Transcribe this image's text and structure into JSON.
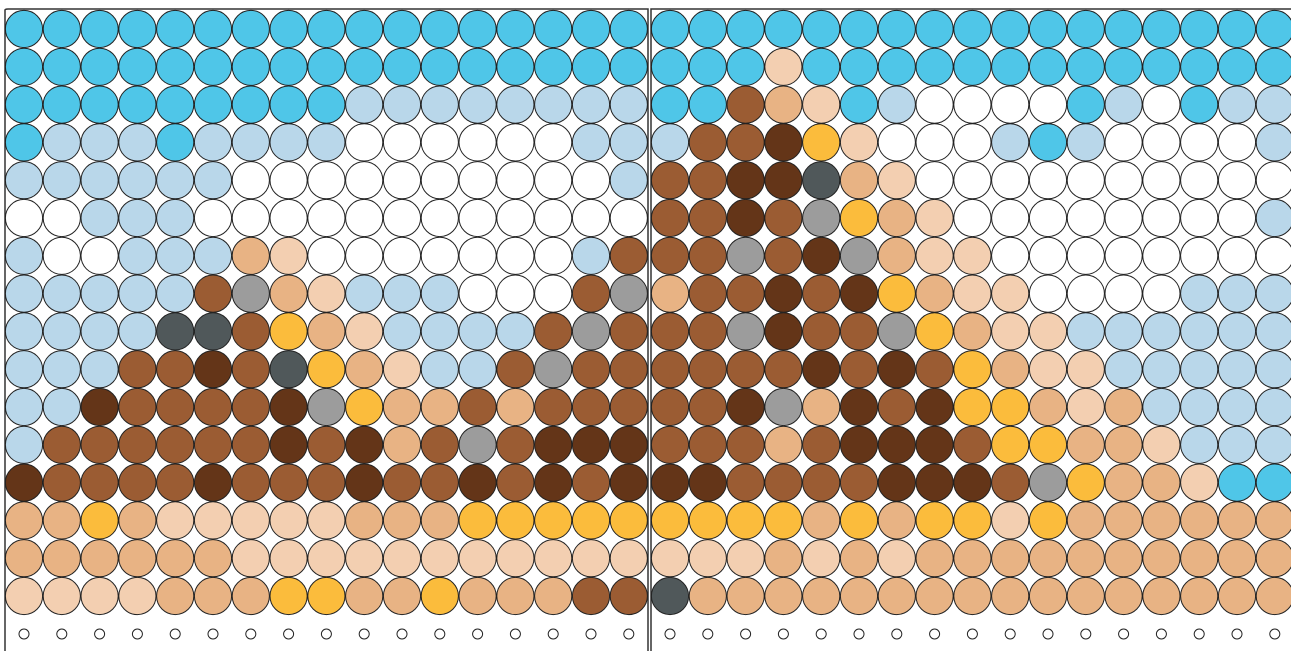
{
  "boards": [
    {
      "rows": [
        [
          "#4fc6e8",
          "#4fc6e8",
          "#4fc6e8",
          "#4fc6e8",
          "#4fc6e8",
          "#4fc6e8",
          "#4fc6e8",
          "#4fc6e8",
          "#4fc6e8",
          "#4fc6e8",
          "#4fc6e8",
          "#4fc6e8",
          "#4fc6e8",
          "#4fc6e8",
          "#4fc6e8",
          "#4fc6e8",
          "#4fc6e8"
        ],
        [
          "#4fc6e8",
          "#4fc6e8",
          "#4fc6e8",
          "#4fc6e8",
          "#4fc6e8",
          "#4fc6e8",
          "#4fc6e8",
          "#4fc6e8",
          "#4fc6e8",
          "#4fc6e8",
          "#4fc6e8",
          "#4fc6e8",
          "#4fc6e8",
          "#4fc6e8",
          "#4fc6e8",
          "#4fc6e8",
          "#4fc6e8"
        ],
        [
          "#4fc6e8",
          "#4fc6e8",
          "#4fc6e8",
          "#4fc6e8",
          "#4fc6e8",
          "#4fc6e8",
          "#4fc6e8",
          "#4fc6e8",
          "#4fc6e8",
          "#b9d7ea",
          "#b9d7ea",
          "#b9d7ea",
          "#b9d7ea",
          "#b9d7ea",
          "#b9d7ea",
          "#b9d7ea",
          "#b9d7ea"
        ],
        [
          "#4fc6e8",
          "#b9d7ea",
          "#b9d7ea",
          "#b9d7ea",
          "#4fc6e8",
          "#b9d7ea",
          "#b9d7ea",
          "#b9d7ea",
          "#b9d7ea",
          "#ffffff",
          "#ffffff",
          "#ffffff",
          "#ffffff",
          "#ffffff",
          "#ffffff",
          "#b9d7ea",
          "#b9d7ea"
        ],
        [
          "#b9d7ea",
          "#b9d7ea",
          "#b9d7ea",
          "#b9d7ea",
          "#b9d7ea",
          "#b9d7ea",
          "#ffffff",
          "#ffffff",
          "#ffffff",
          "#ffffff",
          "#ffffff",
          "#ffffff",
          "#ffffff",
          "#ffffff",
          "#ffffff",
          "#ffffff",
          "#b9d7ea"
        ],
        [
          "#ffffff",
          "#ffffff",
          "#b9d7ea",
          "#b9d7ea",
          "#b9d7ea",
          "#ffffff",
          "#ffffff",
          "#ffffff",
          "#ffffff",
          "#ffffff",
          "#ffffff",
          "#ffffff",
          "#ffffff",
          "#ffffff",
          "#ffffff",
          "#ffffff",
          "#ffffff"
        ],
        [
          "#b9d7ea",
          "#ffffff",
          "#ffffff",
          "#b9d7ea",
          "#b9d7ea",
          "#b9d7ea",
          "#e8b384",
          "#f3cfb1",
          "#ffffff",
          "#ffffff",
          "#ffffff",
          "#ffffff",
          "#ffffff",
          "#ffffff",
          "#ffffff",
          "#b9d7ea",
          "#9b5c33"
        ],
        [
          "#b9d7ea",
          "#b9d7ea",
          "#b9d7ea",
          "#b9d7ea",
          "#b9d7ea",
          "#9b5c33",
          "#9c9c9c",
          "#e8b384",
          "#f3cfb1",
          "#b9d7ea",
          "#b9d7ea",
          "#b9d7ea",
          "#ffffff",
          "#ffffff",
          "#ffffff",
          "#9b5c33",
          "#9c9c9c"
        ],
        [
          "#b9d7ea",
          "#b9d7ea",
          "#b9d7ea",
          "#b9d7ea",
          "#50585a",
          "#50585a",
          "#9b5c33",
          "#fbbc3c",
          "#e8b384",
          "#f3cfb1",
          "#b9d7ea",
          "#b9d7ea",
          "#b9d7ea",
          "#b9d7ea",
          "#9b5c33",
          "#9c9c9c",
          "#9b5c33"
        ],
        [
          "#b9d7ea",
          "#b9d7ea",
          "#b9d7ea",
          "#9b5c33",
          "#9b5c33",
          "#643518",
          "#9b5c33",
          "#50585a",
          "#fbbc3c",
          "#e8b384",
          "#f3cfb1",
          "#b9d7ea",
          "#b9d7ea",
          "#9b5c33",
          "#9c9c9c",
          "#9b5c33",
          "#9b5c33"
        ],
        [
          "#b9d7ea",
          "#b9d7ea",
          "#643518",
          "#9b5c33",
          "#9b5c33",
          "#9b5c33",
          "#9b5c33",
          "#643518",
          "#9c9c9c",
          "#fbbc3c",
          "#e8b384",
          "#e8b384",
          "#9b5c33",
          "#e8b384",
          "#9b5c33",
          "#9b5c33",
          "#9b5c33"
        ],
        [
          "#b9d7ea",
          "#9b5c33",
          "#9b5c33",
          "#9b5c33",
          "#9b5c33",
          "#9b5c33",
          "#9b5c33",
          "#643518",
          "#9b5c33",
          "#643518",
          "#e8b384",
          "#9b5c33",
          "#9c9c9c",
          "#9b5c33",
          "#643518",
          "#643518",
          "#643518"
        ],
        [
          "#643518",
          "#9b5c33",
          "#9b5c33",
          "#9b5c33",
          "#9b5c33",
          "#643518",
          "#9b5c33",
          "#9b5c33",
          "#9b5c33",
          "#643518",
          "#9b5c33",
          "#9b5c33",
          "#643518",
          "#9b5c33",
          "#643518",
          "#9b5c33",
          "#643518"
        ],
        [
          "#e8b384",
          "#e8b384",
          "#fbbc3c",
          "#e8b384",
          "#f3cfb1",
          "#f3cfb1",
          "#f3cfb1",
          "#f3cfb1",
          "#f3cfb1",
          "#e8b384",
          "#e8b384",
          "#e8b384",
          "#fbbc3c",
          "#fbbc3c",
          "#fbbc3c",
          "#fbbc3c",
          "#fbbc3c"
        ],
        [
          "#e8b384",
          "#e8b384",
          "#e8b384",
          "#e8b384",
          "#e8b384",
          "#e8b384",
          "#f3cfb1",
          "#f3cfb1",
          "#f3cfb1",
          "#f3cfb1",
          "#f3cfb1",
          "#f3cfb1",
          "#f3cfb1",
          "#f3cfb1",
          "#f3cfb1",
          "#f3cfb1",
          "#f3cfb1"
        ],
        [
          "#f3cfb1",
          "#f3cfb1",
          "#f3cfb1",
          "#f3cfb1",
          "#e8b384",
          "#e8b384",
          "#e8b384",
          "#fbbc3c",
          "#fbbc3c",
          "#e8b384",
          "#e8b384",
          "#fbbc3c",
          "#e8b384",
          "#e8b384",
          "#e8b384",
          "#9b5c33",
          "#9b5c33"
        ]
      ]
    },
    {
      "rows": [
        [
          "#4fc6e8",
          "#4fc6e8",
          "#4fc6e8",
          "#4fc6e8",
          "#4fc6e8",
          "#4fc6e8",
          "#4fc6e8",
          "#4fc6e8",
          "#4fc6e8",
          "#4fc6e8",
          "#4fc6e8",
          "#4fc6e8",
          "#4fc6e8",
          "#4fc6e8",
          "#4fc6e8",
          "#4fc6e8",
          "#4fc6e8"
        ],
        [
          "#4fc6e8",
          "#4fc6e8",
          "#4fc6e8",
          "#f3cfb1",
          "#4fc6e8",
          "#4fc6e8",
          "#4fc6e8",
          "#4fc6e8",
          "#4fc6e8",
          "#4fc6e8",
          "#4fc6e8",
          "#4fc6e8",
          "#4fc6e8",
          "#4fc6e8",
          "#4fc6e8",
          "#4fc6e8",
          "#4fc6e8"
        ],
        [
          "#4fc6e8",
          "#4fc6e8",
          "#9b5c33",
          "#e8b384",
          "#f3cfb1",
          "#4fc6e8",
          "#b9d7ea",
          "#ffffff",
          "#ffffff",
          "#ffffff",
          "#ffffff",
          "#4fc6e8",
          "#b9d7ea",
          "#ffffff",
          "#4fc6e8",
          "#b9d7ea",
          "#b9d7ea"
        ],
        [
          "#b9d7ea",
          "#9b5c33",
          "#9b5c33",
          "#643518",
          "#fbbc3c",
          "#f3cfb1",
          "#ffffff",
          "#ffffff",
          "#ffffff",
          "#b9d7ea",
          "#4fc6e8",
          "#b9d7ea",
          "#ffffff",
          "#ffffff",
          "#ffffff",
          "#ffffff",
          "#b9d7ea"
        ],
        [
          "#9b5c33",
          "#9b5c33",
          "#643518",
          "#643518",
          "#50585a",
          "#e8b384",
          "#f3cfb1",
          "#ffffff",
          "#ffffff",
          "#ffffff",
          "#ffffff",
          "#ffffff",
          "#ffffff",
          "#ffffff",
          "#ffffff",
          "#ffffff",
          "#ffffff"
        ],
        [
          "#9b5c33",
          "#9b5c33",
          "#643518",
          "#9b5c33",
          "#9c9c9c",
          "#fbbc3c",
          "#e8b384",
          "#f3cfb1",
          "#ffffff",
          "#ffffff",
          "#ffffff",
          "#ffffff",
          "#ffffff",
          "#ffffff",
          "#ffffff",
          "#ffffff",
          "#b9d7ea"
        ],
        [
          "#9b5c33",
          "#9b5c33",
          "#9c9c9c",
          "#9b5c33",
          "#643518",
          "#9c9c9c",
          "#e8b384",
          "#f3cfb1",
          "#f3cfb1",
          "#ffffff",
          "#ffffff",
          "#ffffff",
          "#ffffff",
          "#ffffff",
          "#ffffff",
          "#ffffff",
          "#ffffff"
        ],
        [
          "#e8b384",
          "#9b5c33",
          "#9b5c33",
          "#643518",
          "#9b5c33",
          "#643518",
          "#fbbc3c",
          "#e8b384",
          "#f3cfb1",
          "#f3cfb1",
          "#ffffff",
          "#ffffff",
          "#ffffff",
          "#ffffff",
          "#b9d7ea",
          "#b9d7ea",
          "#b9d7ea"
        ],
        [
          "#9b5c33",
          "#9b5c33",
          "#9c9c9c",
          "#643518",
          "#9b5c33",
          "#9b5c33",
          "#9c9c9c",
          "#fbbc3c",
          "#e8b384",
          "#f3cfb1",
          "#f3cfb1",
          "#b9d7ea",
          "#b9d7ea",
          "#b9d7ea",
          "#b9d7ea",
          "#b9d7ea",
          "#b9d7ea"
        ],
        [
          "#9b5c33",
          "#9b5c33",
          "#9b5c33",
          "#9b5c33",
          "#643518",
          "#9b5c33",
          "#643518",
          "#9b5c33",
          "#fbbc3c",
          "#e8b384",
          "#f3cfb1",
          "#f3cfb1",
          "#b9d7ea",
          "#b9d7ea",
          "#b9d7ea",
          "#b9d7ea",
          "#b9d7ea"
        ],
        [
          "#9b5c33",
          "#9b5c33",
          "#643518",
          "#9c9c9c",
          "#e8b384",
          "#643518",
          "#9b5c33",
          "#643518",
          "#fbbc3c",
          "#fbbc3c",
          "#e8b384",
          "#f3cfb1",
          "#e8b384",
          "#b9d7ea",
          "#b9d7ea",
          "#b9d7ea",
          "#b9d7ea"
        ],
        [
          "#9b5c33",
          "#9b5c33",
          "#9b5c33",
          "#e8b384",
          "#9b5c33",
          "#643518",
          "#643518",
          "#643518",
          "#9b5c33",
          "#fbbc3c",
          "#fbbc3c",
          "#e8b384",
          "#e8b384",
          "#f3cfb1",
          "#b9d7ea",
          "#b9d7ea",
          "#b9d7ea"
        ],
        [
          "#643518",
          "#643518",
          "#9b5c33",
          "#9b5c33",
          "#9b5c33",
          "#9b5c33",
          "#643518",
          "#643518",
          "#643518",
          "#9b5c33",
          "#9c9c9c",
          "#fbbc3c",
          "#e8b384",
          "#e8b384",
          "#f3cfb1",
          "#4fc6e8",
          "#4fc6e8"
        ],
        [
          "#fbbc3c",
          "#fbbc3c",
          "#fbbc3c",
          "#fbbc3c",
          "#e8b384",
          "#fbbc3c",
          "#e8b384",
          "#fbbc3c",
          "#fbbc3c",
          "#f3cfb1",
          "#fbbc3c",
          "#e8b384",
          "#e8b384",
          "#e8b384",
          "#e8b384",
          "#e8b384",
          "#e8b384"
        ],
        [
          "#f3cfb1",
          "#f3cfb1",
          "#f3cfb1",
          "#e8b384",
          "#f3cfb1",
          "#e8b384",
          "#f3cfb1",
          "#e8b384",
          "#e8b384",
          "#e8b384",
          "#e8b384",
          "#e8b384",
          "#e8b384",
          "#e8b384",
          "#e8b384",
          "#e8b384",
          "#e8b384"
        ],
        [
          "#50585a",
          "#e8b384",
          "#e8b384",
          "#e8b384",
          "#e8b384",
          "#e8b384",
          "#e8b384",
          "#e8b384",
          "#e8b384",
          "#e8b384",
          "#e8b384",
          "#e8b384",
          "#e8b384",
          "#e8b384",
          "#e8b384",
          "#e8b384",
          "#e8b384"
        ]
      ]
    }
  ]
}
